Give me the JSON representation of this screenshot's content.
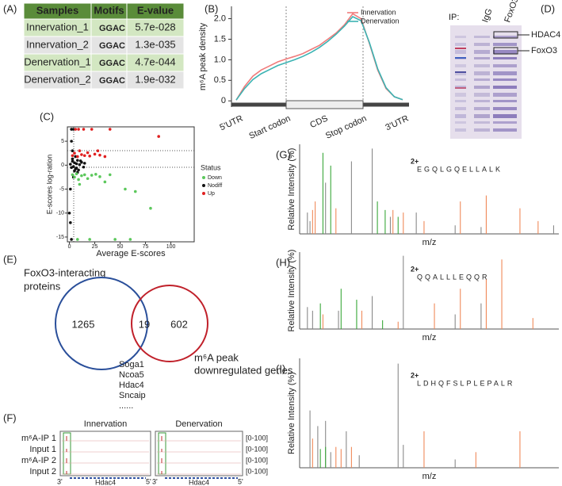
{
  "panel_a": {
    "label": "(A)",
    "columns": [
      "Samples",
      "Motifs",
      "E-value"
    ],
    "rows": [
      [
        "Innervation_1",
        "GGAC",
        "5.7e-028"
      ],
      [
        "Innervation_2",
        "GGAC",
        "1.3e-035"
      ],
      [
        "Denervation_1",
        "GGAC",
        "4.7e-044"
      ],
      [
        "Denervation_2",
        "GGAC",
        "1.9e-032"
      ]
    ]
  },
  "chart_data": [
    {
      "type": "line",
      "panel_label": "(B)",
      "ylabel": "m⁶A peak density",
      "x": [
        0,
        0.05,
        0.1,
        0.15,
        0.2,
        0.25,
        0.3,
        0.35,
        0.4,
        0.45,
        0.5,
        0.55,
        0.6,
        0.65,
        0.7,
        0.75,
        0.8,
        0.85,
        0.9,
        0.95,
        1
      ],
      "xlim": [
        0,
        1
      ],
      "ylim": [
        -0.15,
        2.3
      ],
      "yticks": [
        0,
        0.5,
        {
          "value": 1,
          "label": "1.0"
        },
        1.5,
        {
          "value": 2,
          "label": "2.0"
        }
      ],
      "regions": [
        "5'UTR",
        "Start codon",
        "CDS",
        "Stop codon",
        "3'UTR"
      ],
      "legend": "upper right",
      "series": [
        {
          "name": "Innervation",
          "color": "#f07b7b",
          "values": [
            0.02,
            0.35,
            0.6,
            0.75,
            0.85,
            0.95,
            1.02,
            1.08,
            1.15,
            1.25,
            1.35,
            1.5,
            1.65,
            1.85,
            2.12,
            2.0,
            1.4,
            0.75,
            0.3,
            0.1,
            0.03
          ]
        },
        {
          "name": "Denervation",
          "color": "#3bb3b3",
          "values": [
            0.02,
            0.3,
            0.52,
            0.66,
            0.76,
            0.86,
            0.93,
            1.0,
            1.08,
            1.18,
            1.3,
            1.45,
            1.62,
            1.82,
            2.05,
            1.95,
            1.42,
            0.78,
            0.32,
            0.1,
            0.03
          ]
        }
      ]
    },
    {
      "type": "scatter",
      "panel_label": "(C)",
      "xlabel": "Average E-scores",
      "ylabel": "E-scores log-ration",
      "xlim": [
        -2,
        123
      ],
      "ylim": [
        -16,
        8
      ],
      "xticks": [
        0,
        25,
        50,
        75,
        100
      ],
      "yticks": [
        -15,
        -10,
        -5,
        0,
        5
      ],
      "legend_title": "Status",
      "legend": "right",
      "series": [
        {
          "name": "Down",
          "color": "#5cc85c",
          "x": [
            3,
            5,
            7,
            9,
            12,
            15,
            18,
            22,
            26,
            30,
            40,
            55,
            65,
            80,
            20,
            45,
            60,
            10,
            35,
            8
          ],
          "values": [
            -2,
            -2.5,
            -1.8,
            -3,
            -2.2,
            -2,
            -2.8,
            -2.1,
            -1.9,
            -2.4,
            -2,
            -5,
            -5.5,
            -9,
            -15.5,
            -15.5,
            -15.5,
            -4,
            -3.5,
            -15.5
          ]
        },
        {
          "name": "Nodiff",
          "color": "#111111",
          "x": [
            1,
            2,
            3,
            4,
            5,
            6,
            7,
            8,
            9,
            10,
            12,
            14,
            3,
            5,
            7,
            2,
            4,
            6,
            8,
            11,
            15,
            2,
            1,
            0,
            1,
            2,
            4,
            3
          ],
          "values": [
            0.2,
            -0.5,
            0.8,
            -0.3,
            0.5,
            -0.8,
            0.3,
            1,
            -1,
            0.1,
            0.6,
            -0.4,
            1.3,
            -1.2,
            -0.6,
            7.5,
            7.5,
            1.8,
            -1.5,
            0.9,
            0.4,
            -15.5,
            -5,
            -10,
            -12,
            5,
            -2.5,
            3
          ]
        },
        {
          "name": "Up",
          "color": "#e02020",
          "x": [
            3,
            5,
            8,
            10,
            12,
            15,
            18,
            20,
            25,
            30,
            35,
            6,
            9,
            14,
            22,
            40,
            88,
            28
          ],
          "values": [
            2,
            2.5,
            1.8,
            3,
            2.2,
            2,
            2.6,
            1.9,
            2.3,
            2.1,
            1.8,
            7.5,
            7.5,
            7.5,
            7.5,
            7.5,
            6,
            3
          ]
        }
      ]
    },
    {
      "type": "stem",
      "panel_label": "(G)",
      "ylabel": "Relative Intensity (%)",
      "xlabel": "m/z",
      "peptide": "EGQLGQELLALK",
      "charge": "2+",
      "xlim": [
        0,
        100
      ],
      "ylim": [
        0,
        105
      ],
      "series": [
        {
          "color": "#8a8a8a",
          "x": [
            3,
            4,
            10,
            20,
            28,
            35,
            45,
            60,
            70,
            98
          ],
          "values": [
            25,
            15,
            60,
            85,
            100,
            20,
            25,
            10,
            8,
            10
          ]
        },
        {
          "color": "#3aa83a",
          "x": [
            9,
            12,
            30,
            33,
            38
          ],
          "values": [
            95,
            80,
            38,
            28,
            20
          ]
        },
        {
          "color": "#f08a5a",
          "x": [
            5,
            6,
            14,
            36,
            40,
            48,
            62,
            72,
            85,
            92
          ],
          "values": [
            28,
            38,
            30,
            28,
            25,
            15,
            38,
            45,
            30,
            15
          ]
        }
      ]
    },
    {
      "type": "stem",
      "panel_label": "(H)",
      "ylabel": "Relative Intensity (%)",
      "xlabel": "m/z",
      "peptide": "QQALLLEQQR",
      "charge": "2+",
      "xlim": [
        0,
        100
      ],
      "ylim": [
        0,
        105
      ],
      "series": [
        {
          "color": "#8a8a8a",
          "x": [
            3,
            5,
            15,
            28,
            40,
            60,
            70
          ],
          "values": [
            30,
            25,
            25,
            45,
            100,
            20,
            35
          ]
        },
        {
          "color": "#3aa83a",
          "x": [
            8,
            16,
            22,
            32
          ],
          "values": [
            35,
            55,
            40,
            12
          ]
        },
        {
          "color": "#f08a5a",
          "x": [
            9,
            24,
            38,
            52,
            62,
            72,
            78,
            90
          ],
          "values": [
            20,
            25,
            10,
            35,
            55,
            68,
            95,
            15
          ]
        }
      ]
    },
    {
      "type": "stem",
      "panel_label": "(I)",
      "ylabel": "Relative Intensity (%)",
      "xlabel": "m/z",
      "peptide": "LDHQFSLPLEPALR",
      "charge": "2+",
      "xlim": [
        0,
        100
      ],
      "ylim": [
        0,
        105
      ],
      "series": [
        {
          "color": "#8a8a8a",
          "x": [
            4,
            7,
            10,
            12,
            18,
            23,
            38,
            40,
            60
          ],
          "values": [
            55,
            40,
            45,
            15,
            35,
            12,
            100,
            22,
            8
          ]
        },
        {
          "color": "#3aa83a",
          "x": [
            8,
            10
          ],
          "values": [
            18,
            20
          ]
        },
        {
          "color": "#f08a5a",
          "x": [
            5,
            14,
            16,
            20,
            48,
            68,
            85
          ],
          "values": [
            28,
            20,
            18,
            20,
            35,
            15,
            35
          ]
        }
      ]
    }
  ],
  "panel_d": {
    "label": "(D)",
    "ip": "IP:",
    "lanes": [
      "IgG",
      "FoxO3"
    ],
    "bands": [
      "HDAC4",
      "FoxO3"
    ]
  },
  "panel_e": {
    "label": "(E)",
    "set_a": [
      "FoxO3-interacting",
      "proteins"
    ],
    "set_b": [
      "m⁶A peak",
      "downregulated genes"
    ],
    "counts": [
      1265,
      19,
      602
    ],
    "genes": [
      "Soga1",
      "Ncoa5",
      "Hdac4",
      "Sncaip",
      "......"
    ]
  },
  "panel_f": {
    "label": "(F)",
    "conditions": [
      "Innervation",
      "Denervation"
    ],
    "tracks": [
      "m⁶A-IP 1",
      "Input 1",
      "m⁶A-IP 2",
      "Input 2"
    ],
    "ranges": [
      "[0-100]",
      "[0-100]",
      "[0-100]",
      "[0-100]"
    ],
    "gene": "Hdac4",
    "ends": [
      "3'",
      "5'"
    ]
  }
}
